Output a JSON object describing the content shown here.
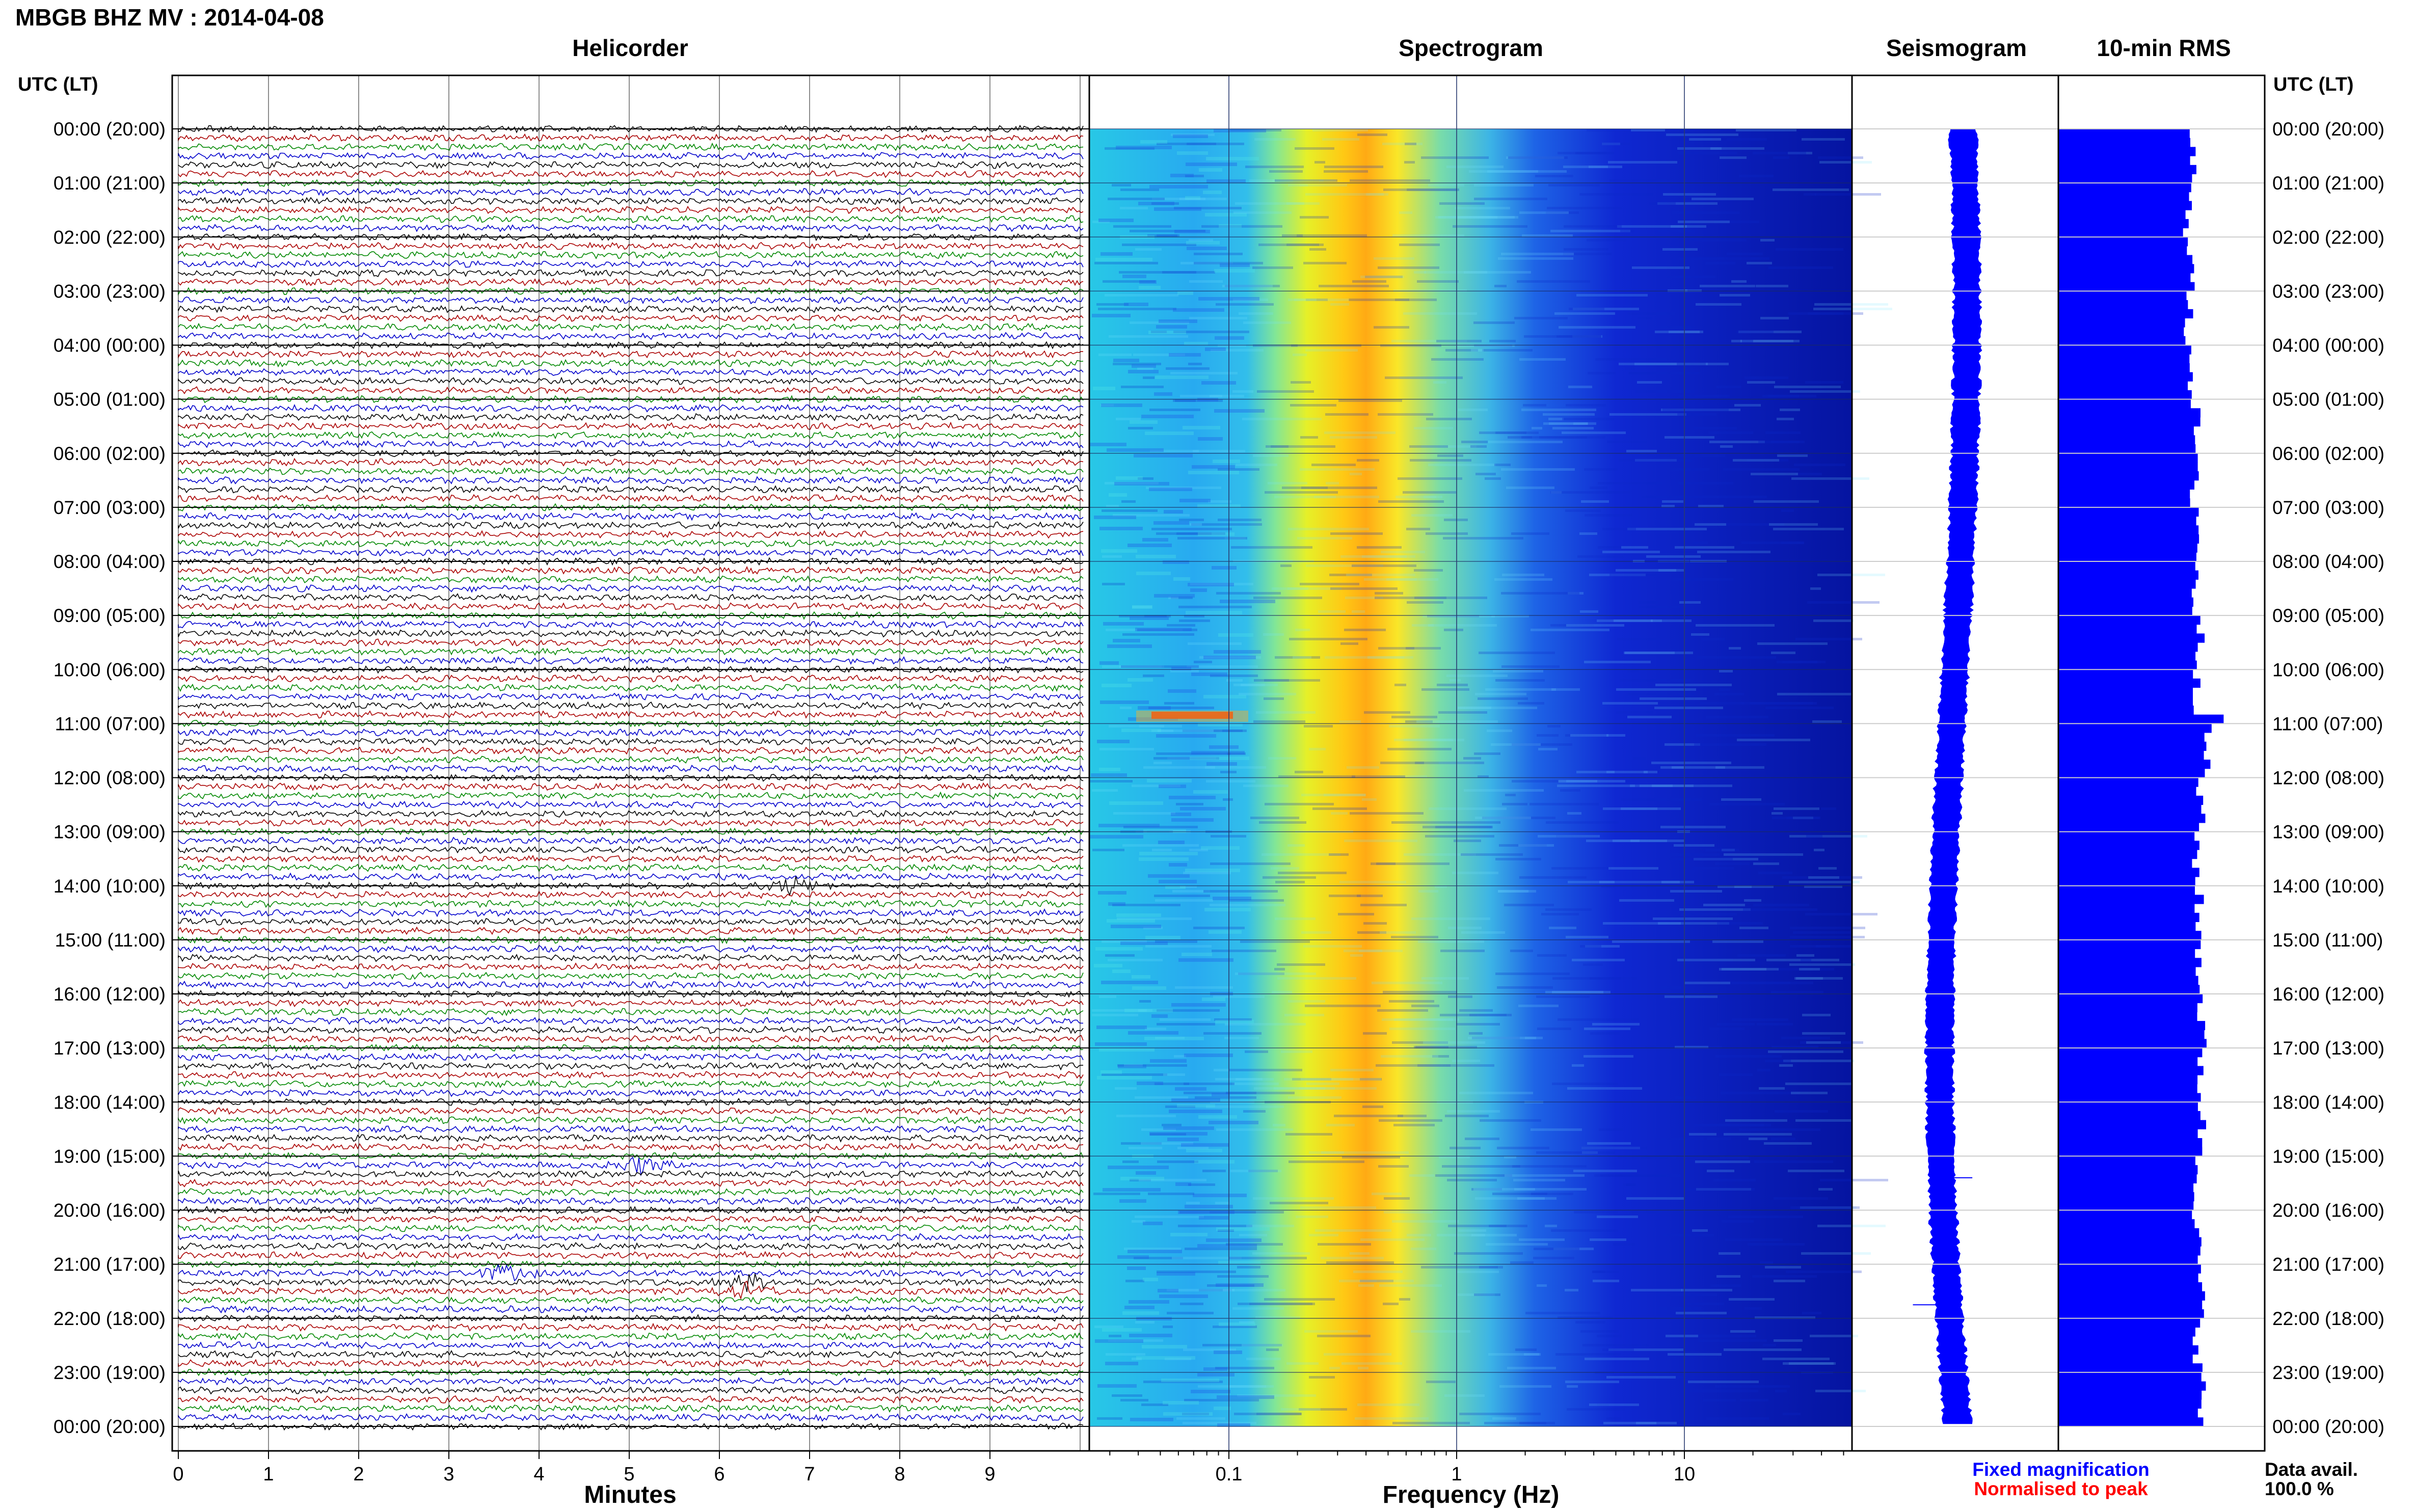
{
  "page_title": "MBGB BHZ MV : 2014-04-08",
  "panel_titles": {
    "helicorder": "Helicorder",
    "spectrogram": "Spectrogram",
    "seismogram": "Seismogram",
    "rms": "10-min RMS"
  },
  "axis_header_left": "UTC (LT)",
  "axis_header_right": "UTC (LT)",
  "time_labels": [
    "00:00 (20:00)",
    "01:00 (21:00)",
    "02:00 (22:00)",
    "03:00 (23:00)",
    "04:00 (00:00)",
    "05:00 (01:00)",
    "06:00 (02:00)",
    "07:00 (03:00)",
    "08:00 (04:00)",
    "09:00 (05:00)",
    "10:00 (06:00)",
    "11:00 (07:00)",
    "12:00 (08:00)",
    "13:00 (09:00)",
    "14:00 (10:00)",
    "15:00 (11:00)",
    "16:00 (12:00)",
    "17:00 (13:00)",
    "18:00 (14:00)",
    "19:00 (15:00)",
    "20:00 (16:00)",
    "21:00 (17:00)",
    "22:00 (18:00)",
    "23:00 (19:00)",
    "00:00 (20:00)"
  ],
  "helicorder_xlabel": "Minutes",
  "helicorder_ticks": [
    "0",
    "1",
    "2",
    "3",
    "4",
    "5",
    "6",
    "7",
    "8",
    "9"
  ],
  "spectrogram_xlabel": "Frequency (Hz)",
  "spectrogram_ticks": [
    "0.1",
    "1",
    "10"
  ],
  "legend": {
    "fixed": "Fixed magnification",
    "normalised": "Normalised to peak",
    "fixed_color": "#0000ff",
    "normalised_color": "#ff0000"
  },
  "data_avail_label": "Data avail.",
  "data_avail_value": "100.0 %",
  "colors": {
    "trace_cycle": [
      "#000000",
      "#aa0000",
      "#008800",
      "#0000cc"
    ],
    "rms_bar": "#0000ff",
    "seismogram": "#0000ff"
  },
  "chart_data": [
    {
      "type": "line",
      "title": "Helicorder",
      "xlabel": "Minutes",
      "xlim": [
        0,
        10
      ],
      "rows_per_hour": 6,
      "hours": 24,
      "events": [
        {
          "hour": 14.0,
          "minute": 6.8,
          "label": ""
        },
        {
          "hour": 19.15,
          "minute": 5.1,
          "label": ""
        },
        {
          "hour": 21.2,
          "minute": 3.6,
          "label": ""
        },
        {
          "hour": 21.4,
          "minute": 6.3,
          "label": ""
        }
      ]
    },
    {
      "type": "heatmap",
      "title": "Spectrogram",
      "xlabel": "Frequency (Hz)",
      "xscale": "log",
      "xlim": [
        0.02,
        50
      ],
      "peak_band_hz": [
        0.2,
        0.5
      ],
      "colormap": "jet"
    },
    {
      "type": "line",
      "title": "Seismogram",
      "orientation": "vertical",
      "hours": 24
    },
    {
      "type": "bar",
      "title": "10-min RMS",
      "orientation": "horizontal",
      "hours": 24,
      "bins_per_hour": 6,
      "hourly_relative_values": [
        0.91,
        0.88,
        0.9,
        0.88,
        0.91,
        0.93,
        0.92,
        0.95,
        0.93,
        0.96,
        0.95,
        1.0,
        0.96,
        0.94,
        0.95,
        0.96,
        0.97,
        0.97,
        0.97,
        0.95,
        0.94,
        0.96,
        0.95,
        0.97
      ]
    }
  ]
}
